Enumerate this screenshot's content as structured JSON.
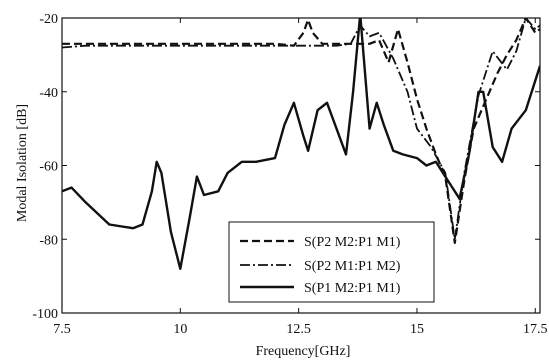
{
  "chart_data": {
    "type": "line",
    "xlabel": "Frequency[GHz]",
    "ylabel": "Modal Isolation [dB]",
    "xlim": [
      7.5,
      17.6
    ],
    "ylim": [
      -100,
      -20
    ],
    "xticks": [
      7.5,
      10,
      12.5,
      15,
      17.5
    ],
    "xtick_labels": [
      "7.5",
      "10",
      "12.5",
      "15",
      "17.5"
    ],
    "yticks": [
      -100,
      -80,
      -60,
      -40,
      -20
    ],
    "ytick_labels": [
      "-100",
      "-80",
      "-60",
      "-40",
      "-20"
    ],
    "grid": false,
    "legend_position": "lower-center",
    "series": [
      {
        "name": "S(P2 M2:P1 M1)",
        "style": "dashed",
        "color": "#111111",
        "x": [
          7.5,
          8.0,
          8.5,
          9.0,
          9.5,
          10.0,
          10.5,
          11.0,
          11.5,
          12.0,
          12.4,
          12.6,
          12.7,
          12.8,
          13.0,
          13.3,
          13.6,
          13.8,
          14.0,
          14.2,
          14.4,
          14.6,
          14.8,
          15.0,
          15.2,
          15.4,
          15.6,
          15.8,
          16.0,
          16.2,
          16.5,
          16.7,
          16.9,
          17.1,
          17.3,
          17.5,
          17.6
        ],
        "y": [
          -27,
          -27,
          -27,
          -27,
          -27,
          -27,
          -27,
          -27,
          -27,
          -27,
          -27.5,
          -24,
          -20.5,
          -24,
          -27,
          -27,
          -27,
          -27,
          -27,
          -26,
          -32,
          -23,
          -32,
          -42,
          -50,
          -57,
          -63,
          -81,
          -64,
          -50,
          -41,
          -35,
          -30,
          -26,
          -20,
          -24,
          -23
        ]
      },
      {
        "name": "S(P2 M1:P1 M2)",
        "style": "dashdot",
        "color": "#111111",
        "x": [
          7.5,
          8.0,
          8.5,
          9.0,
          9.5,
          10.0,
          10.5,
          11.0,
          11.5,
          12.0,
          12.5,
          13.0,
          13.3,
          13.6,
          13.8,
          14.0,
          14.2,
          14.5,
          14.8,
          15.0,
          15.3,
          15.6,
          15.8,
          16.0,
          16.3,
          16.6,
          16.9,
          17.1,
          17.3,
          17.5,
          17.6
        ],
        "y": [
          -28,
          -27.5,
          -27.5,
          -27.5,
          -27.5,
          -27.5,
          -27.5,
          -27.5,
          -27.5,
          -27.5,
          -27.5,
          -27.5,
          -27.5,
          -27,
          -22,
          -25,
          -24,
          -31,
          -40,
          -50,
          -55,
          -62,
          -80,
          -62,
          -41,
          -29,
          -34,
          -29,
          -20,
          -23,
          -22
        ]
      },
      {
        "name": "S(P1 M2:P1 M1)",
        "style": "solid",
        "color": "#111111",
        "x": [
          7.5,
          7.7,
          8.0,
          8.5,
          9.0,
          9.2,
          9.4,
          9.5,
          9.6,
          9.8,
          10.0,
          10.2,
          10.35,
          10.5,
          10.8,
          11.0,
          11.3,
          11.6,
          12.0,
          12.2,
          12.4,
          12.6,
          12.7,
          12.9,
          13.0,
          13.1,
          13.3,
          13.5,
          13.65,
          13.8,
          14.0,
          14.15,
          14.3,
          14.5,
          14.7,
          15.0,
          15.2,
          15.4,
          15.6,
          15.75,
          15.9,
          16.1,
          16.3,
          16.4,
          16.6,
          16.8,
          17.0,
          17.3,
          17.6
        ],
        "y": [
          -67,
          -66,
          -70,
          -76,
          -77,
          -76,
          -67,
          -59,
          -62,
          -78,
          -88,
          -74,
          -63,
          -68,
          -67,
          -62,
          -59,
          -59,
          -58,
          -49,
          -43,
          -52,
          -56,
          -45,
          -44,
          -43,
          -50,
          -57,
          -40,
          -19,
          -50,
          -43,
          -49,
          -56,
          -57,
          -58,
          -60,
          -59,
          -63,
          -66,
          -69,
          -57,
          -40,
          -40,
          -55,
          -59,
          -50,
          -45,
          -33
        ]
      }
    ]
  }
}
